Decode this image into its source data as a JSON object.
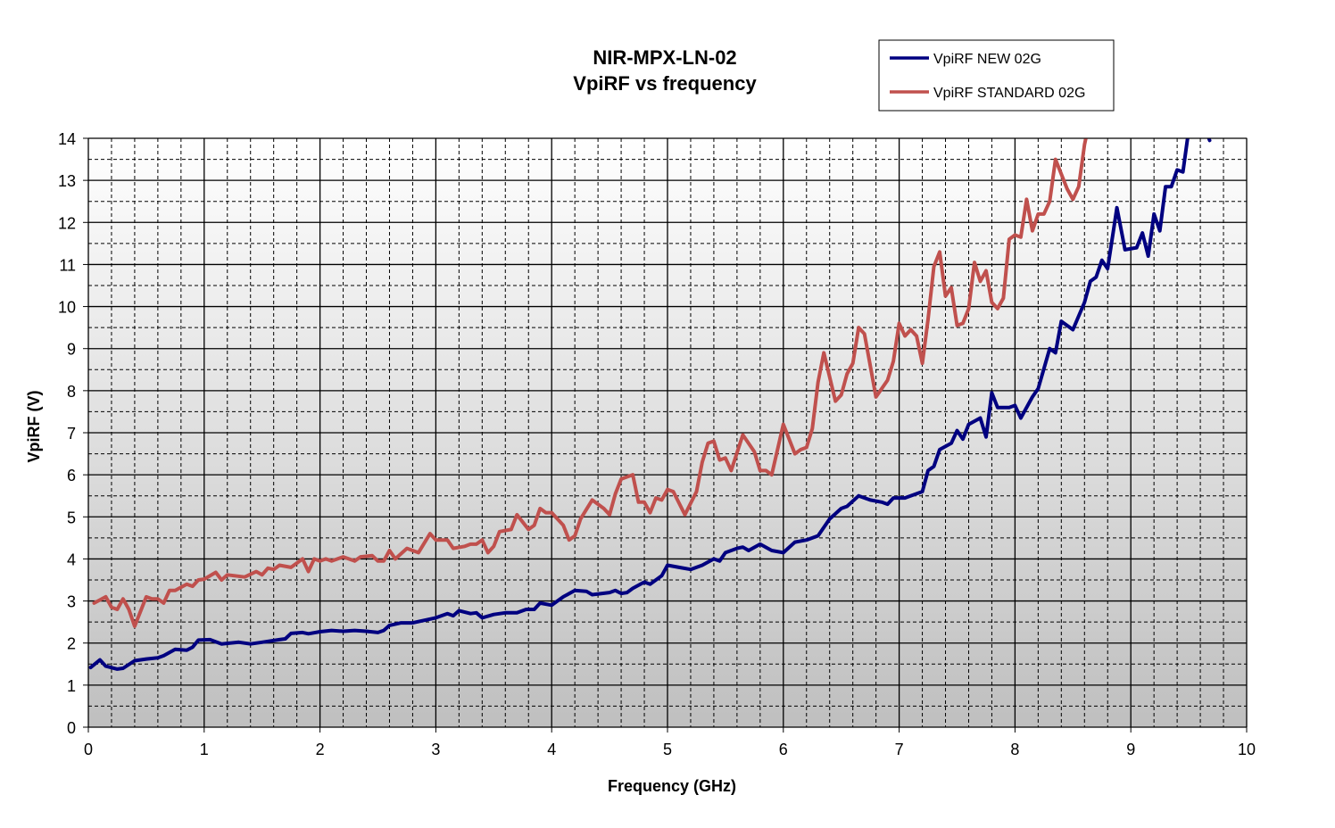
{
  "chart_data": {
    "type": "line",
    "title": [
      "NIR-MPX-LN-02",
      "VpiRF vs frequency"
    ],
    "xlabel": "Frequency (GHz)",
    "ylabel": "VpiRF (V)",
    "xlim": [
      0,
      10
    ],
    "ylim": [
      0,
      14
    ],
    "x_ticks": [
      "0",
      "1",
      "2",
      "3",
      "4",
      "5",
      "6",
      "7",
      "8",
      "9",
      "10"
    ],
    "y_ticks": [
      "0",
      "1",
      "2",
      "3",
      "4",
      "5",
      "6",
      "7",
      "8",
      "9",
      "10",
      "11",
      "12",
      "13",
      "14"
    ],
    "grid": {
      "major": true,
      "minor_x_step": 0.2,
      "minor_y_step": 0.5
    },
    "legend_position": "top-right",
    "series": [
      {
        "name": "VpiRF NEW 02G",
        "color": "#000080",
        "x": [
          0.02,
          0.1,
          0.15,
          0.25,
          0.3,
          0.4,
          0.5,
          0.6,
          0.65,
          0.75,
          0.85,
          0.9,
          0.95,
          1.05,
          1.15,
          1.3,
          1.4,
          1.5,
          1.65,
          1.7,
          1.75,
          1.85,
          1.9,
          2.0,
          2.1,
          2.2,
          2.3,
          2.4,
          2.5,
          2.55,
          2.6,
          2.7,
          2.8,
          3.0,
          3.1,
          3.15,
          3.2,
          3.3,
          3.35,
          3.4,
          3.5,
          3.6,
          3.7,
          3.78,
          3.85,
          3.9,
          4.0,
          4.1,
          4.2,
          4.3,
          4.35,
          4.5,
          4.55,
          4.6,
          4.65,
          4.7,
          4.8,
          4.85,
          4.95,
          5.0,
          5.1,
          5.2,
          5.3,
          5.4,
          5.45,
          5.5,
          5.6,
          5.65,
          5.7,
          5.8,
          5.9,
          6.0,
          6.1,
          6.2,
          6.3,
          6.4,
          6.5,
          6.55,
          6.65,
          6.75,
          6.85,
          6.9,
          6.95,
          7.05,
          7.2,
          7.25,
          7.3,
          7.35,
          7.45,
          7.5,
          7.55,
          7.6,
          7.7,
          7.75,
          7.8,
          7.85,
          7.95,
          8.0,
          8.05,
          8.15,
          8.2,
          8.3,
          8.35,
          8.4,
          8.5,
          8.6,
          8.65,
          8.7,
          8.75,
          8.8,
          8.85,
          8.88,
          8.95,
          9.05,
          9.1,
          9.15,
          9.2,
          9.25,
          9.3,
          9.35,
          9.4,
          9.45,
          9.5,
          9.6,
          9.68
        ],
        "values": [
          1.42,
          1.6,
          1.45,
          1.38,
          1.4,
          1.58,
          1.62,
          1.65,
          1.7,
          1.85,
          1.83,
          1.9,
          2.07,
          2.08,
          1.98,
          2.02,
          1.98,
          2.02,
          2.08,
          2.1,
          2.23,
          2.25,
          2.22,
          2.27,
          2.3,
          2.28,
          2.3,
          2.28,
          2.25,
          2.3,
          2.42,
          2.48,
          2.48,
          2.6,
          2.7,
          2.65,
          2.77,
          2.7,
          2.72,
          2.6,
          2.68,
          2.72,
          2.72,
          2.8,
          2.8,
          2.95,
          2.9,
          3.1,
          3.25,
          3.23,
          3.15,
          3.2,
          3.25,
          3.18,
          3.2,
          3.3,
          3.45,
          3.4,
          3.6,
          3.85,
          3.8,
          3.75,
          3.85,
          4.0,
          3.95,
          4.15,
          4.25,
          4.28,
          4.2,
          4.35,
          4.2,
          4.15,
          4.4,
          4.45,
          4.55,
          4.95,
          5.2,
          5.25,
          5.5,
          5.4,
          5.35,
          5.3,
          5.45,
          5.45,
          5.6,
          6.1,
          6.2,
          6.6,
          6.75,
          7.05,
          6.85,
          7.2,
          7.35,
          6.9,
          7.95,
          7.6,
          7.6,
          7.65,
          7.35,
          7.85,
          8.05,
          9.0,
          8.9,
          9.65,
          9.45,
          10.1,
          10.6,
          10.7,
          11.1,
          10.9,
          11.8,
          12.35,
          11.35,
          11.4,
          11.75,
          11.2,
          12.2,
          11.8,
          12.85,
          12.85,
          13.25,
          13.2,
          14.2,
          14.6,
          13.95
        ]
      },
      {
        "name": "VpiRF STANDARD 02G",
        "color": "#C0504D",
        "x": [
          0.05,
          0.15,
          0.2,
          0.25,
          0.3,
          0.35,
          0.4,
          0.5,
          0.55,
          0.6,
          0.65,
          0.7,
          0.75,
          0.85,
          0.9,
          0.95,
          1.0,
          1.1,
          1.15,
          1.2,
          1.35,
          1.45,
          1.5,
          1.55,
          1.6,
          1.65,
          1.75,
          1.85,
          1.9,
          1.95,
          2.0,
          2.05,
          2.1,
          2.2,
          2.3,
          2.35,
          2.45,
          2.5,
          2.55,
          2.6,
          2.65,
          2.75,
          2.85,
          2.95,
          3.0,
          3.05,
          3.1,
          3.15,
          3.25,
          3.3,
          3.35,
          3.4,
          3.45,
          3.5,
          3.55,
          3.65,
          3.7,
          3.8,
          3.85,
          3.9,
          3.95,
          4.0,
          4.1,
          4.15,
          4.2,
          4.25,
          4.35,
          4.45,
          4.5,
          4.55,
          4.6,
          4.65,
          4.7,
          4.75,
          4.8,
          4.85,
          4.9,
          4.95,
          5.0,
          5.05,
          5.15,
          5.25,
          5.3,
          5.35,
          5.4,
          5.45,
          5.5,
          5.55,
          5.65,
          5.75,
          5.8,
          5.85,
          5.9,
          6.0,
          6.1,
          6.15,
          6.2,
          6.25,
          6.3,
          6.35,
          6.45,
          6.5,
          6.55,
          6.6,
          6.65,
          6.7,
          6.8,
          6.9,
          6.95,
          7.0,
          7.05,
          7.1,
          7.15,
          7.2,
          7.25,
          7.3,
          7.35,
          7.4,
          7.45,
          7.5,
          7.55,
          7.6,
          7.65,
          7.7,
          7.75,
          7.8,
          7.85,
          7.9,
          7.95,
          8.0,
          8.05,
          8.1,
          8.15,
          8.2,
          8.25,
          8.3,
          8.35,
          8.45,
          8.5,
          8.55,
          8.6,
          8.65
        ],
        "values": [
          2.95,
          3.1,
          2.85,
          2.8,
          3.05,
          2.8,
          2.4,
          3.1,
          3.05,
          3.05,
          2.95,
          3.25,
          3.25,
          3.4,
          3.35,
          3.5,
          3.52,
          3.68,
          3.5,
          3.62,
          3.57,
          3.7,
          3.62,
          3.78,
          3.75,
          3.85,
          3.8,
          4.0,
          3.7,
          4.0,
          3.95,
          4.0,
          3.95,
          4.05,
          3.95,
          4.05,
          4.08,
          3.95,
          3.95,
          4.2,
          4.0,
          4.25,
          4.15,
          4.6,
          4.45,
          4.45,
          4.45,
          4.25,
          4.3,
          4.35,
          4.35,
          4.45,
          4.15,
          4.3,
          4.65,
          4.7,
          5.05,
          4.7,
          4.8,
          5.2,
          5.1,
          5.1,
          4.8,
          4.45,
          4.55,
          4.95,
          5.4,
          5.2,
          5.05,
          5.55,
          5.9,
          5.95,
          6.0,
          5.35,
          5.35,
          5.1,
          5.45,
          5.4,
          5.65,
          5.6,
          5.05,
          5.6,
          6.3,
          6.75,
          6.8,
          6.35,
          6.4,
          6.1,
          6.95,
          6.55,
          6.1,
          6.1,
          6.0,
          7.2,
          6.5,
          6.6,
          6.65,
          7.1,
          8.2,
          8.9,
          7.75,
          7.9,
          8.4,
          8.65,
          9.5,
          9.35,
          7.85,
          8.25,
          8.7,
          9.6,
          9.3,
          9.45,
          9.3,
          8.65,
          9.7,
          10.95,
          11.3,
          10.25,
          10.45,
          9.55,
          9.6,
          9.95,
          11.05,
          10.6,
          10.85,
          10.1,
          9.95,
          10.2,
          11.6,
          11.7,
          11.65,
          12.55,
          11.8,
          12.2,
          12.2,
          12.5,
          13.5,
          12.8,
          12.55,
          12.85,
          13.85,
          14.5
        ]
      }
    ]
  }
}
